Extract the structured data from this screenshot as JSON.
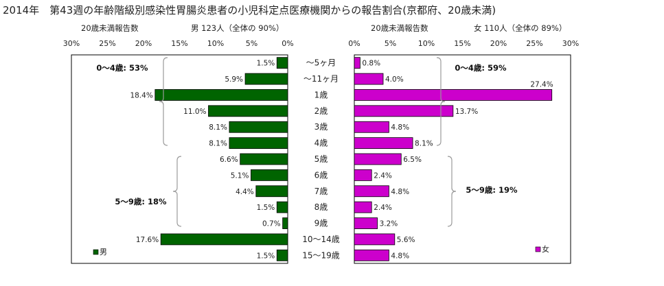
{
  "title": "2014年　第43週の年齢階級別感染性胃腸炎患者の小児科定点医療機関からの報告割合(京都府、20歳未満)",
  "header": {
    "male_left": "20歳未満報告数",
    "male_right": "男 123人（全体の 90%）",
    "female_left": "20歳未満報告数",
    "female_right": "女 110人（全体の 89%）"
  },
  "chart_data": {
    "type": "bar",
    "orientation": "horizontal-butterfly",
    "categories": [
      "～5ヶ月",
      "～11ヶ月",
      "1歳",
      "2歳",
      "3歳",
      "4歳",
      "5歳",
      "6歳",
      "7歳",
      "8歳",
      "9歳",
      "10～14歳",
      "15～19歳"
    ],
    "xlim": [
      0,
      30
    ],
    "x_ticks": [
      "30%",
      "25%",
      "20%",
      "15%",
      "10%",
      "5%",
      "0%"
    ],
    "x_ticks_right": [
      "0%",
      "5%",
      "10%",
      "15%",
      "20%",
      "25%",
      "30%"
    ],
    "series": [
      {
        "name": "男",
        "color": "#006400",
        "values": [
          1.5,
          5.9,
          18.4,
          11.0,
          8.1,
          8.1,
          6.6,
          5.1,
          4.4,
          1.5,
          0.7,
          17.6,
          1.5
        ],
        "labels": [
          "1.5%",
          "5.9%",
          "18.4%",
          "11.0%",
          "8.1%",
          "8.1%",
          "6.6%",
          "5.1%",
          "4.4%",
          "1.5%",
          "0.7%",
          "17.6%",
          "1.5%"
        ]
      },
      {
        "name": "女",
        "color": "#cc00cc",
        "values": [
          0.8,
          4.0,
          27.4,
          13.7,
          4.8,
          8.1,
          6.5,
          2.4,
          4.8,
          2.4,
          3.2,
          5.6,
          4.8
        ],
        "labels": [
          "0.8%",
          "4.0%",
          "27.4%",
          "13.7%",
          "4.8%",
          "8.1%",
          "6.5%",
          "2.4%",
          "4.8%",
          "2.4%",
          "3.2%",
          "5.6%",
          "4.8%"
        ]
      }
    ],
    "annotations": {
      "male_0_4": "0～4歳: 53%",
      "male_5_9": "5～9歳: 18%",
      "female_0_4": "0～4歳: 59%",
      "female_5_9": "5～9歳: 19%"
    },
    "grid": false
  }
}
